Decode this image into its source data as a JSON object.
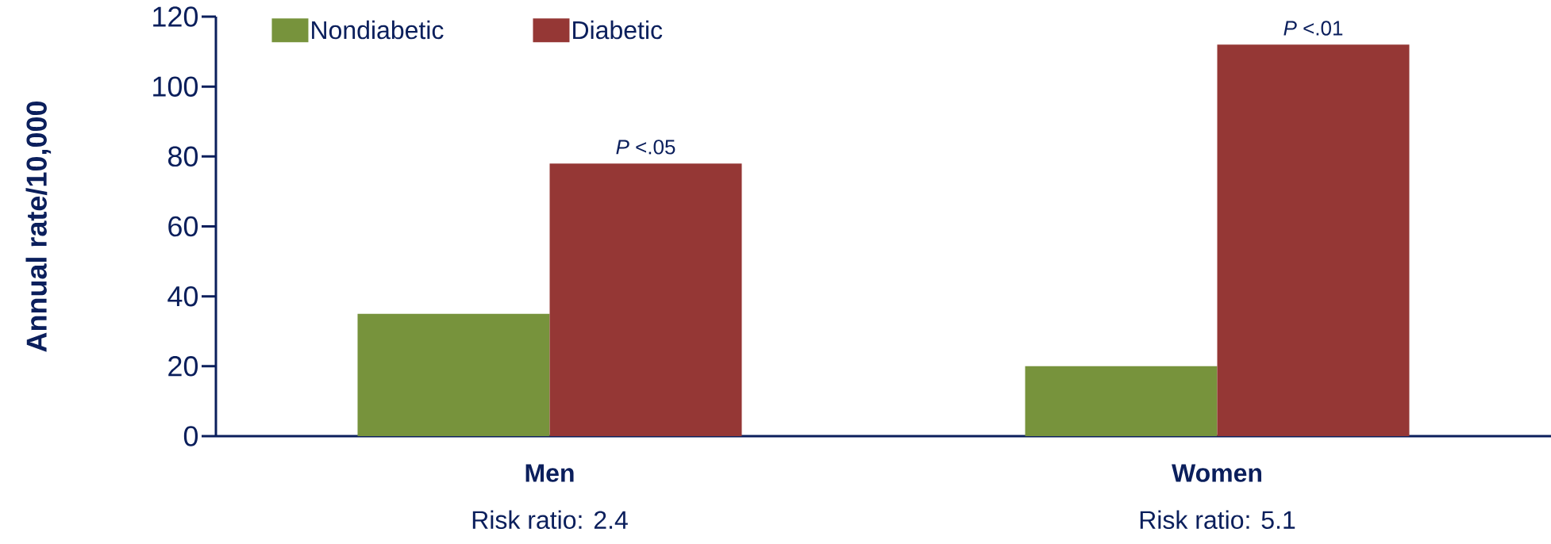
{
  "chart_data": {
    "type": "bar",
    "ylabel": "Annual rate/10,000",
    "categories": [
      "Men",
      "Women"
    ],
    "series": [
      {
        "name": "Nondiabetic",
        "color": "#77933c",
        "values": [
          35,
          20
        ]
      },
      {
        "name": "Diabetic",
        "color": "#953735",
        "values": [
          78,
          112
        ]
      }
    ],
    "ylim": [
      0,
      120
    ],
    "yticks": [
      0,
      20,
      40,
      60,
      80,
      100,
      120
    ],
    "annotations": [
      "*P* <.05",
      "*P* <.01",
      "Risk ratio: 2.4",
      "Risk ratio: 5.1"
    ],
    "legend": "top left",
    "grid": false
  }
}
